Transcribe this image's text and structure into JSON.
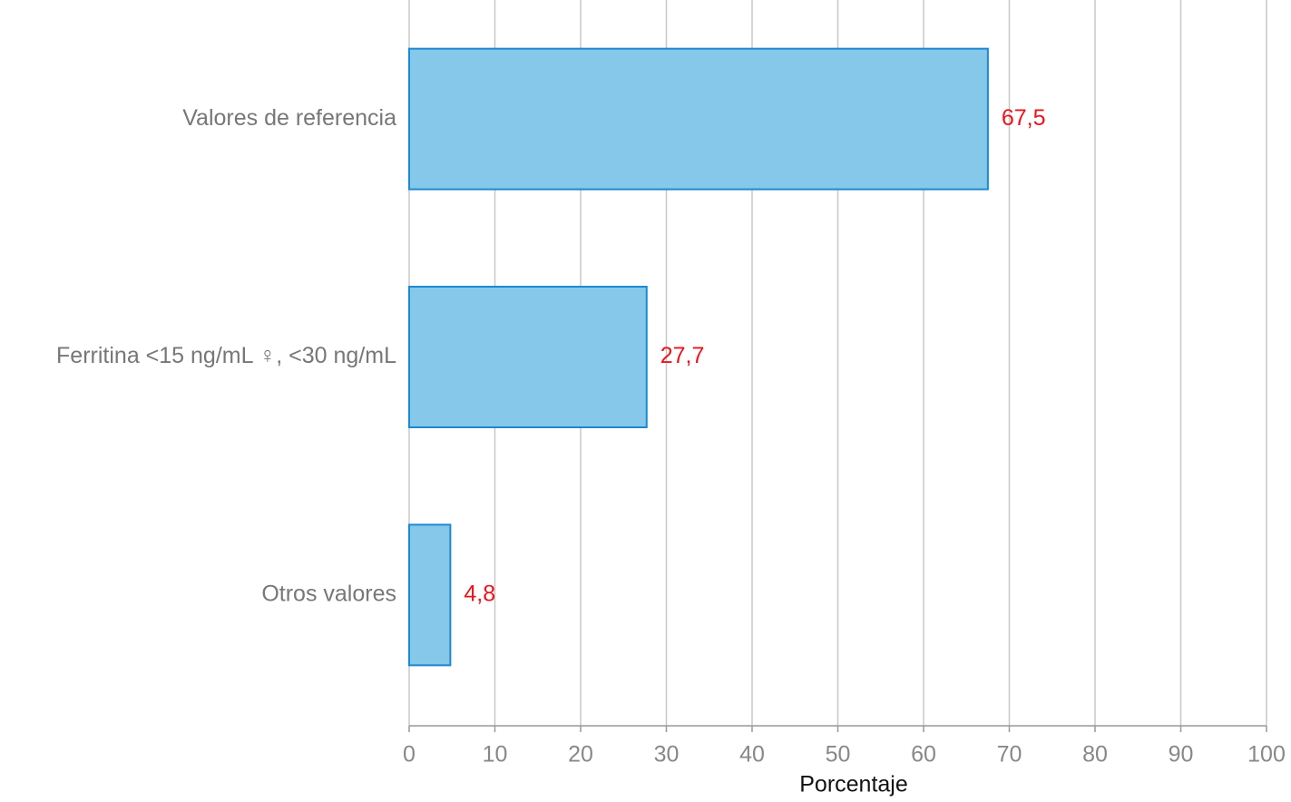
{
  "chart_data": {
    "type": "hbar",
    "categories": [
      "Valores de referencia",
      "Ferritina <15 ng/mL ♀, <30 ng/mL",
      "Otros valores"
    ],
    "values": [
      67.5,
      27.7,
      4.8
    ],
    "value_labels": [
      "67,5",
      "27,7",
      "4,8"
    ],
    "color": "#85c8ea",
    "edge_color": "#1e88d0",
    "label_color": "#e8141c",
    "xlabel": "Porcentaje",
    "xlim": [
      0,
      100
    ],
    "xticks": [
      0,
      10,
      20,
      30,
      40,
      50,
      60,
      70,
      80,
      90,
      100
    ],
    "grid": true
  }
}
